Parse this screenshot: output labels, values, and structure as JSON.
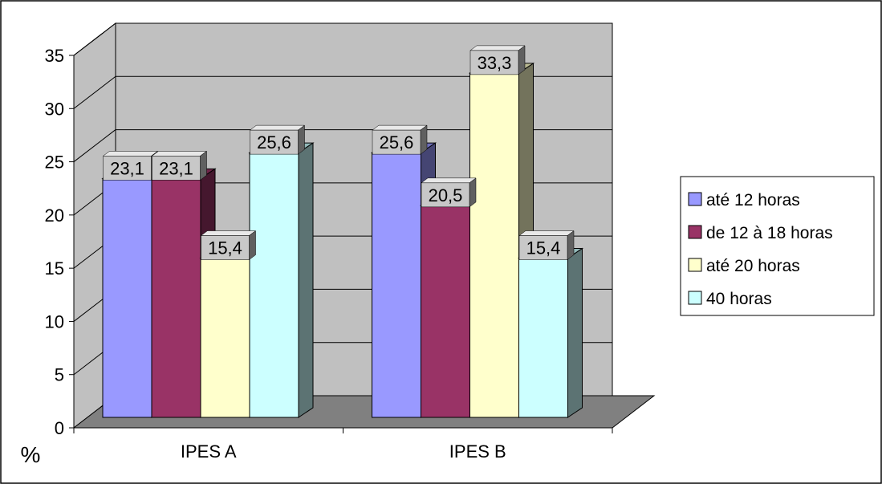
{
  "chart_data": {
    "type": "bar",
    "title": "",
    "xlabel": "",
    "ylabel": "%",
    "ylim": [
      0,
      35
    ],
    "yticks": [
      "0",
      "5",
      "10",
      "15",
      "20",
      "25",
      "30",
      "35"
    ],
    "grid": true,
    "legend_position": "right",
    "categories": [
      "IPES A",
      "IPES B"
    ],
    "series": [
      {
        "name": "até 12 horas",
        "values": [
          23.1,
          25.6
        ],
        "labels": [
          "23,1",
          "25,6"
        ],
        "color": "#9999ff"
      },
      {
        "name": "de 12 à 18 horas",
        "values": [
          23.1,
          20.5
        ],
        "labels": [
          "23,1",
          "20,5"
        ],
        "color": "#993366"
      },
      {
        "name": "até 20 horas",
        "values": [
          15.4,
          33.3
        ],
        "labels": [
          "15,4",
          "33,3"
        ],
        "color": "#ffffcc"
      },
      {
        "name": "40 horas",
        "values": [
          25.6,
          15.4
        ],
        "labels": [
          "25,6",
          "15,4"
        ],
        "color": "#ccffff"
      }
    ]
  }
}
